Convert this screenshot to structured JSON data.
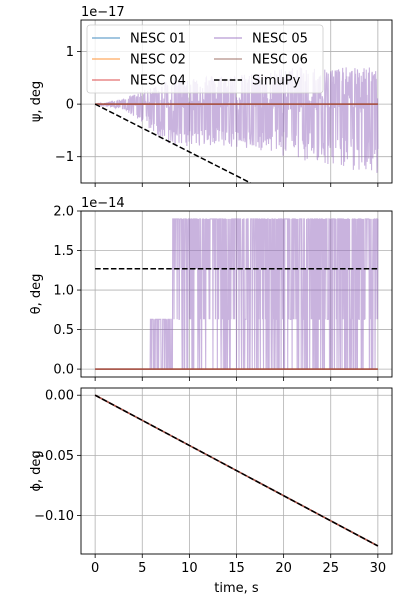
{
  "chart_data": [
    {
      "type": "line",
      "ylabel": "ψ, deg",
      "y_offset_label": "1e−17",
      "ylim": [
        -1.5,
        1.6
      ],
      "xlim": [
        -1.5,
        31.5
      ],
      "yticks": [
        {
          "value": -1,
          "label": "−1"
        },
        {
          "value": 0,
          "label": "0"
        },
        {
          "value": 1,
          "label": "1"
        }
      ],
      "xticks": [
        0,
        5,
        10,
        15,
        20,
        25,
        30
      ],
      "show_x_tick_labels": false,
      "grid": true,
      "legend": {
        "placement": "upper-left",
        "columns": 2,
        "entries": [
          "NESC 01",
          "NESC 02",
          "NESC 04",
          "NESC 05",
          "NESC 06",
          "SimuPy"
        ]
      },
      "series": [
        {
          "name": "NESC 01",
          "color": "#1f77b4",
          "style": "solid",
          "x": [
            0,
            30
          ],
          "y": [
            0,
            0
          ]
        },
        {
          "name": "NESC 02",
          "color": "#ff7f0e",
          "style": "solid",
          "x": [
            0,
            30
          ],
          "y": [
            0,
            0
          ]
        },
        {
          "name": "NESC 04",
          "color": "#d62728",
          "style": "solid",
          "x": [
            0,
            30
          ],
          "y": [
            0,
            0
          ]
        },
        {
          "name": "NESC 05",
          "color": "#9467bd",
          "style": "noise",
          "envelope": {
            "x": [
              0,
              3,
              5,
              8,
              12,
              15,
              18,
              20,
              25,
              30
            ],
            "upper": [
              0,
              0.1,
              0.25,
              0.5,
              0.55,
              0.55,
              0.6,
              0.7,
              0.7,
              0.7
            ],
            "lower": [
              0,
              -0.1,
              -0.35,
              -0.8,
              -0.8,
              -0.85,
              -0.9,
              -1.0,
              -1.2,
              -1.35
            ]
          }
        },
        {
          "name": "NESC 06",
          "color": "#8c564b",
          "style": "solid",
          "x": [
            0,
            30
          ],
          "y": [
            0,
            0
          ]
        },
        {
          "name": "SimuPy",
          "color": "#000000",
          "style": "dashed",
          "x": [
            0,
            16.5
          ],
          "y": [
            0,
            -1.5
          ]
        }
      ]
    },
    {
      "type": "line",
      "ylabel": "θ, deg",
      "y_offset_label": "1e−14",
      "ylim": [
        -0.1,
        2.0
      ],
      "xlim": [
        -1.5,
        31.5
      ],
      "yticks": [
        {
          "value": 0.0,
          "label": "0.0"
        },
        {
          "value": 0.5,
          "label": "0.5"
        },
        {
          "value": 1.0,
          "label": "1.0"
        },
        {
          "value": 1.5,
          "label": "1.5"
        },
        {
          "value": 2.0,
          "label": "2.0"
        }
      ],
      "xticks": [
        0,
        5,
        10,
        15,
        20,
        25,
        30
      ],
      "show_x_tick_labels": false,
      "grid": true,
      "series": [
        {
          "name": "NESC 01",
          "color": "#1f77b4",
          "style": "solid",
          "x": [
            0,
            30
          ],
          "y": [
            0,
            0
          ]
        },
        {
          "name": "NESC 02",
          "color": "#ff7f0e",
          "style": "solid",
          "x": [
            0,
            30
          ],
          "y": [
            0,
            0
          ]
        },
        {
          "name": "NESC 04",
          "color": "#d62728",
          "style": "solid",
          "x": [
            0,
            30
          ],
          "y": [
            0,
            0
          ]
        },
        {
          "name": "NESC 05",
          "color": "#9467bd",
          "style": "noise",
          "levels": [
            0,
            0.63,
            1.27,
            1.9
          ],
          "segments": [
            {
              "from": 0,
              "to": 5.8,
              "max": 0
            },
            {
              "from": 5.8,
              "to": 8.2,
              "max": 0.63
            },
            {
              "from": 8.2,
              "to": 30,
              "max": 1.9
            }
          ]
        },
        {
          "name": "NESC 06",
          "color": "#8c564b",
          "style": "solid",
          "x": [
            0,
            30
          ],
          "y": [
            0,
            0
          ]
        },
        {
          "name": "SimuPy",
          "color": "#000000",
          "style": "dashed",
          "x": [
            0,
            30
          ],
          "y": [
            1.27,
            1.27
          ]
        }
      ]
    },
    {
      "type": "line",
      "ylabel": "ϕ, deg",
      "xlabel": "time, s",
      "ylim": [
        -0.132,
        0.006
      ],
      "xlim": [
        -1.5,
        31.5
      ],
      "yticks": [
        {
          "value": 0.0,
          "label": "0.00"
        },
        {
          "value": -0.05,
          "label": "−0.05"
        },
        {
          "value": -0.1,
          "label": "−0.10"
        }
      ],
      "xticks": [
        0,
        5,
        10,
        15,
        20,
        25,
        30
      ],
      "show_x_tick_labels": true,
      "grid": true,
      "series": [
        {
          "name": "NESC 01",
          "color": "#1f77b4",
          "style": "solid",
          "x": [
            0,
            30
          ],
          "y": [
            0,
            -0.1253
          ]
        },
        {
          "name": "NESC 02",
          "color": "#ff7f0e",
          "style": "solid",
          "x": [
            0,
            30
          ],
          "y": [
            0,
            -0.1253
          ]
        },
        {
          "name": "NESC 04",
          "color": "#d62728",
          "style": "solid",
          "x": [
            0,
            30
          ],
          "y": [
            0,
            -0.1253
          ]
        },
        {
          "name": "NESC 05",
          "color": "#9467bd",
          "style": "solid",
          "x": [
            0,
            30
          ],
          "y": [
            0,
            -0.1253
          ]
        },
        {
          "name": "NESC 06",
          "color": "#8c564b",
          "style": "solid",
          "x": [
            0,
            30
          ],
          "y": [
            0,
            -0.1253
          ]
        },
        {
          "name": "SimuPy",
          "color": "#000000",
          "style": "dashed",
          "x": [
            0,
            30
          ],
          "y": [
            0,
            -0.1253
          ]
        }
      ]
    }
  ]
}
